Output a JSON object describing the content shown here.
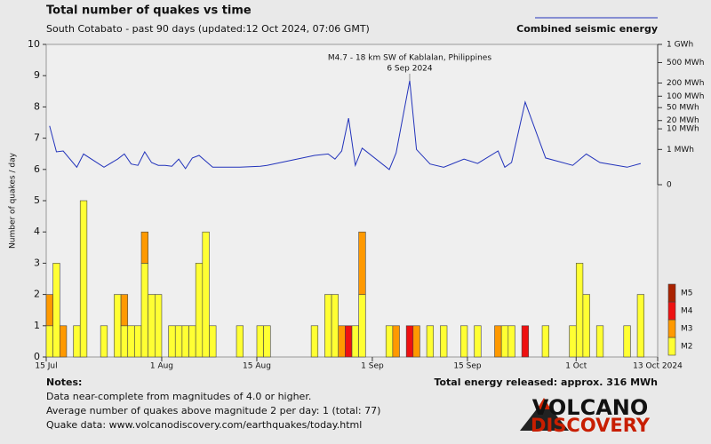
{
  "chart_data": {
    "type": "bar",
    "title": "Total number of quakes vs time",
    "subtitle": "South Cotabato - past 90 days (updated:12 Oct 2024, 07:06 GMT)",
    "ylabel": "Number of quakes / day",
    "stacked": true,
    "x": [
      0,
      1,
      2,
      4,
      5,
      8,
      10,
      11,
      12,
      13,
      14,
      15,
      16,
      18,
      19,
      20,
      21,
      22,
      23,
      24,
      28,
      31,
      32,
      39,
      41,
      42,
      43,
      44,
      45,
      46,
      50,
      51,
      53,
      54,
      56,
      58,
      61,
      63,
      66,
      67,
      68,
      70,
      73,
      77,
      78,
      79,
      81,
      85,
      87
    ],
    "xlim": [
      0,
      90
    ],
    "xticks": [
      {
        "value": 0,
        "label": "15 Jul"
      },
      {
        "value": 17,
        "label": "1 Aug"
      },
      {
        "value": 31,
        "label": "15 Aug"
      },
      {
        "value": 48,
        "label": "1 Sep"
      },
      {
        "value": 62,
        "label": "15 Sep"
      },
      {
        "value": 78,
        "label": "1 Oct"
      },
      {
        "value": 90,
        "label": "13 Oct 2024"
      }
    ],
    "ylim": [
      0,
      10
    ],
    "yticks": [
      0,
      1,
      2,
      3,
      4,
      5,
      6,
      7,
      8,
      9,
      10
    ],
    "series": [
      {
        "name": "M2",
        "color": "#ffff33",
        "values": [
          1,
          3,
          0,
          1,
          5,
          1,
          2,
          1,
          1,
          1,
          3,
          2,
          2,
          1,
          1,
          1,
          1,
          3,
          4,
          1,
          1,
          1,
          1,
          1,
          2,
          2,
          0,
          0,
          1,
          2,
          1,
          0,
          0,
          0,
          1,
          1,
          1,
          1,
          0,
          1,
          1,
          0,
          1,
          1,
          3,
          2,
          1,
          1,
          2
        ]
      },
      {
        "name": "M3",
        "color": "#ff9900",
        "values": [
          1,
          0,
          1,
          0,
          0,
          0,
          0,
          1,
          0,
          0,
          1,
          0,
          0,
          0,
          0,
          0,
          0,
          0,
          0,
          0,
          0,
          0,
          0,
          0,
          0,
          0,
          1,
          0,
          0,
          2,
          0,
          1,
          0,
          1,
          0,
          0,
          0,
          0,
          1,
          0,
          0,
          0,
          0,
          0,
          0,
          0,
          0,
          0,
          0
        ]
      },
      {
        "name": "M4",
        "color": "#ee1111",
        "values": [
          0,
          0,
          0,
          0,
          0,
          0,
          0,
          0,
          0,
          0,
          0,
          0,
          0,
          0,
          0,
          0,
          0,
          0,
          0,
          0,
          0,
          0,
          0,
          0,
          0,
          0,
          0,
          1,
          0,
          0,
          0,
          0,
          1,
          0,
          0,
          0,
          0,
          0,
          0,
          0,
          0,
          1,
          0,
          0,
          0,
          0,
          0,
          0,
          0
        ]
      },
      {
        "name": "M5",
        "color": "#aa2200",
        "values": [
          0,
          0,
          0,
          0,
          0,
          0,
          0,
          0,
          0,
          0,
          0,
          0,
          0,
          0,
          0,
          0,
          0,
          0,
          0,
          0,
          0,
          0,
          0,
          0,
          0,
          0,
          0,
          0,
          0,
          0,
          0,
          0,
          0,
          0,
          0,
          0,
          0,
          0,
          0,
          0,
          0,
          0,
          0,
          0,
          0,
          0,
          0,
          0,
          0
        ]
      }
    ],
    "energy": {
      "type": "line",
      "name": "Combined seismic energy",
      "color": "#2233bb",
      "axis": "y2",
      "x": [
        0,
        1,
        2,
        4,
        5,
        8,
        10,
        11,
        12,
        13,
        14,
        15,
        16,
        17,
        18,
        19,
        20,
        21,
        22,
        24,
        28,
        31,
        32,
        39,
        41,
        42,
        43,
        44,
        45,
        46,
        50,
        51,
        53,
        54,
        56,
        58,
        61,
        63,
        66,
        67,
        68,
        70,
        73,
        77,
        79,
        81,
        85,
        87
      ],
      "values": [
        13,
        0.7,
        0.8,
        0.03,
        0.5,
        0.03,
        0.2,
        0.5,
        0.07,
        0.05,
        0.7,
        0.1,
        0.05,
        0.05,
        0.04,
        0.2,
        0.02,
        0.25,
        0.4,
        0.03,
        0.03,
        0.04,
        0.05,
        0.4,
        0.5,
        0.2,
        0.8,
        24,
        0.05,
        1.2,
        0.015,
        0.6,
        225,
        1,
        0.07,
        0.03,
        0.2,
        0.08,
        0.8,
        0.03,
        0.1,
        71,
        0.25,
        0.05,
        0.5,
        0.1,
        0.03,
        0.08
      ]
    },
    "y2lim": [
      0,
      1000
    ],
    "y2scale": "power",
    "y2exponent": 0.2,
    "y2ticks": [
      {
        "value": 1000,
        "label": "1 GWh"
      },
      {
        "value": 500,
        "label": "500 MWh"
      },
      {
        "value": 200,
        "label": "200 MWh"
      },
      {
        "value": 100,
        "label": "100 MWh"
      },
      {
        "value": 50,
        "label": "50 MWh"
      },
      {
        "value": 20,
        "label": "20 MWh"
      },
      {
        "value": 10,
        "label": "10 MWh"
      },
      {
        "value": 1,
        "label": "1 MWh"
      },
      0
    ],
    "annotation": {
      "x": 53,
      "value": 225,
      "lines": [
        "M4.7 - 18 km SW of Kablalan, Philippines",
        "6 Sep 2024"
      ]
    },
    "total_energy": "Total energy released: approx. 316 MWh"
  },
  "notes": {
    "title": "Notes:",
    "lines": [
      "Data near-complete from magnitudes of 4.0 or higher.",
      "Average number of quakes above magnitude 2 per day: 1 (total: 77)",
      "Quake data: www.volcanodiscovery.com/earthquakes/today.html"
    ]
  },
  "logo": {
    "line1": "VOLCANO",
    "line2": "DISCOVERY"
  }
}
